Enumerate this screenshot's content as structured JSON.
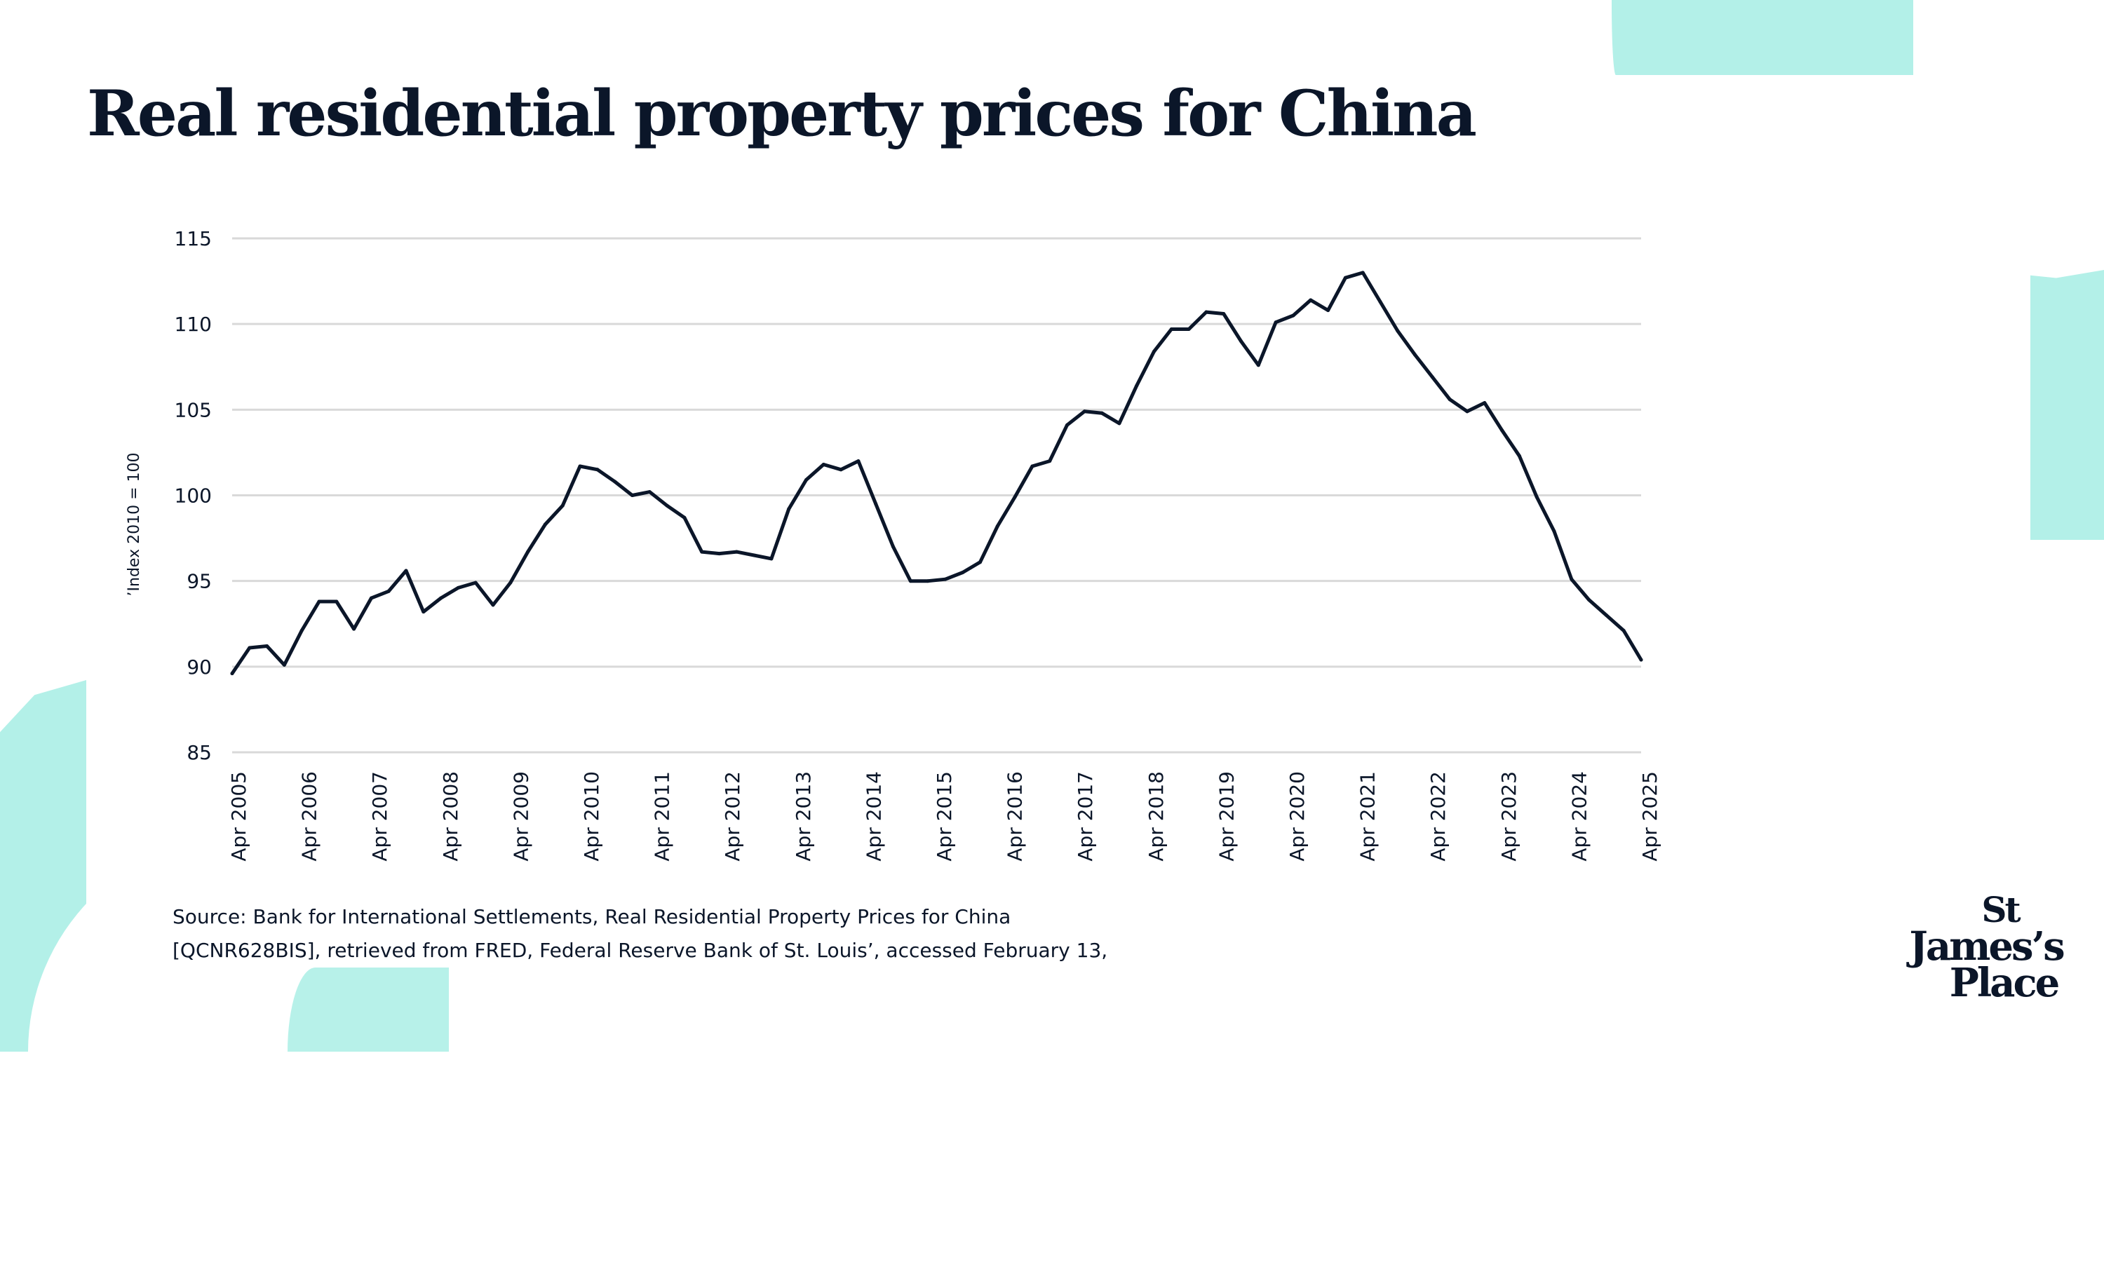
{
  "title": "Real residential property prices for China",
  "source": {
    "line1": "Source: Bank for International Settlements, Real Residential Property Prices for China",
    "line2": "[QCNR628BIS], retrieved from FRED, Federal Reserve Bank of St. Louis’, accessed  February 13,"
  },
  "logo": {
    "line1": "St",
    "line2": "James’s",
    "line3": "Place"
  },
  "colors": {
    "line": "#0b1629",
    "grid": "#d9d9d9",
    "accent_teal": "#b3f0e8"
  },
  "chart_data": {
    "type": "line",
    "title": "Real residential property prices for China",
    "xlabel": "",
    "ylabel": "’Index 2010 = 100",
    "ylim": [
      85,
      115
    ],
    "yticks": [
      85,
      90,
      95,
      100,
      105,
      110,
      115
    ],
    "grid": true,
    "legend": "none",
    "x_tick_labels": [
      "Apr 2005",
      "Apr 2006",
      "Apr 2007",
      "Apr 2008",
      "Apr 2009",
      "Apr 2010",
      "Apr 2011",
      "Apr 2012",
      "Apr 2013",
      "Apr 2014",
      "Apr 2015",
      "Apr 2016",
      "Apr 2017",
      "Apr 2018",
      "Apr 2019",
      "Apr 2020",
      "Apr 2021",
      "Apr 2022",
      "Apr 2023",
      "Apr 2024",
      "Apr 2025"
    ],
    "series": [
      {
        "name": "Real residential property prices for China",
        "frequency": "quarterly",
        "values": [
          89.6,
          91.1,
          91.2,
          90.1,
          92.1,
          93.8,
          93.8,
          92.2,
          94.0,
          94.4,
          95.6,
          93.2,
          94.0,
          94.6,
          94.9,
          93.6,
          94.9,
          96.7,
          98.3,
          99.4,
          101.7,
          101.5,
          100.8,
          100.0,
          100.2,
          99.4,
          98.7,
          96.7,
          96.6,
          96.7,
          96.5,
          96.3,
          99.2,
          100.9,
          101.8,
          101.5,
          102.0,
          99.5,
          97.0,
          95.0,
          95.0,
          95.1,
          95.5,
          96.1,
          98.2,
          99.9,
          101.7,
          102.0,
          104.1,
          104.9,
          104.8,
          104.2,
          106.4,
          108.4,
          109.7,
          109.7,
          110.7,
          110.6,
          109.0,
          107.6,
          110.1,
          110.5,
          111.4,
          110.8,
          112.7,
          113.0,
          111.3,
          109.6,
          108.2,
          106.9,
          105.6,
          104.9,
          105.4,
          103.8,
          102.3,
          99.9,
          97.9,
          95.1,
          93.9,
          93.0,
          92.1,
          90.4
        ]
      }
    ]
  }
}
